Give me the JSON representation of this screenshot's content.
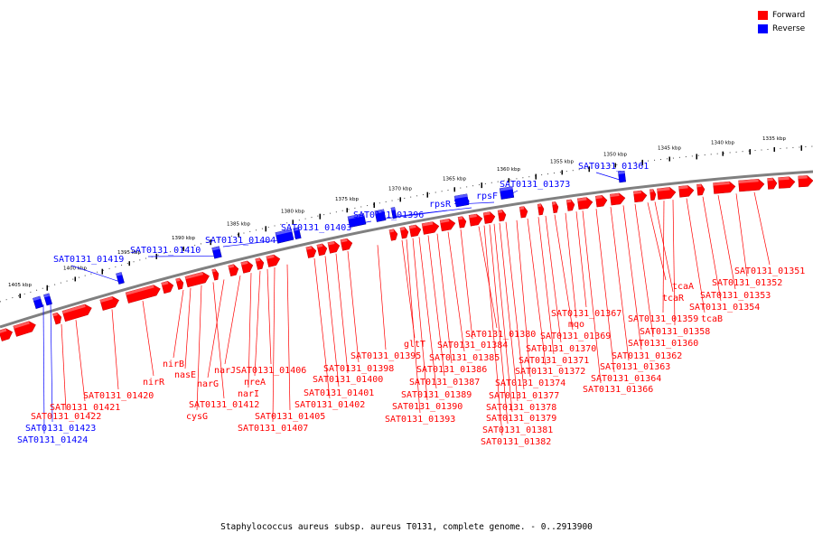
{
  "legend": {
    "forward_label": "Forward",
    "reverse_label": "Reverse",
    "forward_color": "#ff0000",
    "reverse_color": "#0000ff"
  },
  "caption": "Staphylococcus aureus subsp. aureus T0131, complete genome. - 0..2913900",
  "scale": {
    "ticks": [
      "1335 kbp",
      "1340 kbp",
      "1345 kbp",
      "1350 kbp",
      "1355 kbp",
      "1360 kbp",
      "1365 kbp",
      "1370 kbp",
      "1375 kbp",
      "1380 kbp",
      "1385 kbp",
      "1390 kbp",
      "1395 kbp",
      "1400 kbp",
      "1405 kbp"
    ]
  },
  "genes": {
    "reverse": [
      "SAT0131_01361",
      "SAT0131_01373",
      "rpsF",
      "ssb",
      "rpsR",
      "SAT0131_01396",
      "SAT0131_01403",
      "SAT0131_01404",
      "SAT0131_01410",
      "SAT0131_01419",
      "SAT0131_01423",
      "SAT0131_01424"
    ],
    "forward": [
      "SAT0131_01351",
      "SAT0131_01352",
      "SAT0131_01353",
      "SAT0131_01354",
      "tcaB",
      "SAT0131_01358",
      "SAT0131_01359",
      "tcaR",
      "tcaA",
      "SAT0131_01360",
      "SAT0131_01362",
      "SAT0131_01363",
      "SAT0131_01364",
      "SAT0131_01366",
      "SAT0131_01367",
      "mqo",
      "SAT0131_01369",
      "SAT0131_01370",
      "SAT0131_01371",
      "SAT0131_01372",
      "SAT0131_01374",
      "SAT0131_01377",
      "SAT0131_01378",
      "SAT0131_01379",
      "SAT0131_01381",
      "SAT0131_01382",
      "SAT0131_01380",
      "SAT0131_01384",
      "SAT0131_01385",
      "SAT0131_01386",
      "SAT0131_01387",
      "SAT0131_01389",
      "SAT0131_01390",
      "SAT0131_01393",
      "gltT",
      "SAT0131_01395",
      "SAT0131_01398",
      "SAT0131_01400",
      "SAT0131_01401",
      "SAT0131_01402",
      "SAT0131_01405",
      "SAT0131_01407",
      "SAT0131_01406",
      "nreA",
      "narI",
      "narJ",
      "narG",
      "SAT0131_01412",
      "cysG",
      "nasE",
      "nirB",
      "nirR",
      "SAT0131_01420",
      "SAT0131_01421",
      "SAT0131_01422"
    ]
  }
}
